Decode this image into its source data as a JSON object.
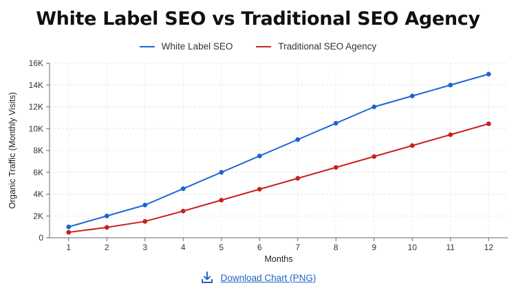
{
  "title": "White Label SEO vs Traditional SEO Agency",
  "download": {
    "label": "Download Chart (PNG)",
    "icon": "download-icon"
  },
  "chart_data": {
    "type": "line",
    "title": "White Label SEO vs Traditional SEO Agency",
    "xlabel": "Months",
    "ylabel": "Organic Traffic (Monthly Visits)",
    "x": [
      1,
      2,
      3,
      4,
      5,
      6,
      7,
      8,
      9,
      10,
      11,
      12
    ],
    "x_tick_labels": [
      "1",
      "2",
      "3",
      "4",
      "5",
      "6",
      "7",
      "8",
      "9",
      "10",
      "11",
      "12"
    ],
    "ylim": [
      0,
      16000
    ],
    "y_ticks": [
      0,
      2000,
      4000,
      6000,
      8000,
      10000,
      12000,
      14000,
      16000
    ],
    "y_tick_labels": [
      "0",
      "2K",
      "4K",
      "6K",
      "8K",
      "10K",
      "12K",
      "14K",
      "16K"
    ],
    "grid": true,
    "legend_position": "top",
    "series": [
      {
        "name": "White Label SEO",
        "color": "#1f63d6",
        "values": [
          1000,
          2000,
          3000,
          4500,
          6000,
          7500,
          9000,
          10500,
          12000,
          13000,
          14000,
          15000
        ]
      },
      {
        "name": "Traditional SEO Agency",
        "color": "#cc1f1f",
        "values": [
          500,
          950,
          1500,
          2450,
          3450,
          4450,
          5450,
          6450,
          7450,
          8450,
          9450,
          10450
        ]
      }
    ]
  }
}
